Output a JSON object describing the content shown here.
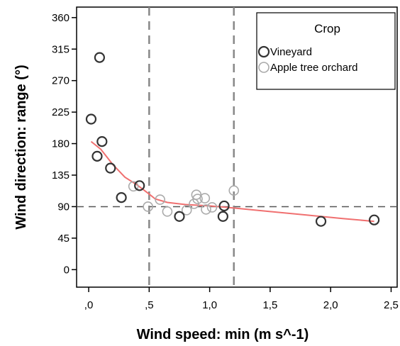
{
  "chart_data": {
    "type": "scatter",
    "xlabel": "Wind speed: min (m s^-1)",
    "ylabel": "Wind direction: range (°)",
    "xlim": [
      -0.1,
      2.55
    ],
    "ylim": [
      -25,
      375
    ],
    "x_ticks": [
      0,
      0.5,
      1.0,
      1.5,
      2.0,
      2.5
    ],
    "x_tick_labels": [
      ",0",
      ",5",
      "1,0",
      "1,5",
      "2,0",
      "2,5"
    ],
    "y_ticks": [
      0,
      45,
      90,
      135,
      180,
      225,
      270,
      315,
      360
    ],
    "y_tick_labels": [
      "0",
      "45",
      "90",
      "135",
      "180",
      "225",
      "270",
      "315",
      "360"
    ],
    "grid": false,
    "legend": {
      "title": "Crop",
      "placement": "top-right"
    },
    "series": [
      {
        "name": "Vineyard",
        "color": "#333333",
        "points": [
          {
            "x": 0.02,
            "y": 215
          },
          {
            "x": 0.07,
            "y": 162
          },
          {
            "x": 0.09,
            "y": 303
          },
          {
            "x": 0.11,
            "y": 183
          },
          {
            "x": 0.18,
            "y": 145
          },
          {
            "x": 0.27,
            "y": 103
          },
          {
            "x": 0.42,
            "y": 120
          },
          {
            "x": 0.75,
            "y": 76
          },
          {
            "x": 1.11,
            "y": 76
          },
          {
            "x": 1.12,
            "y": 91
          },
          {
            "x": 1.92,
            "y": 69
          },
          {
            "x": 2.36,
            "y": 71
          }
        ]
      },
      {
        "name": "Apple tree orchard",
        "color": "#aaaaaa",
        "points": [
          {
            "x": 0.37,
            "y": 119
          },
          {
            "x": 0.49,
            "y": 90
          },
          {
            "x": 0.59,
            "y": 100
          },
          {
            "x": 0.65,
            "y": 83
          },
          {
            "x": 0.81,
            "y": 85
          },
          {
            "x": 0.87,
            "y": 94
          },
          {
            "x": 0.89,
            "y": 107
          },
          {
            "x": 0.9,
            "y": 101
          },
          {
            "x": 0.96,
            "y": 102
          },
          {
            "x": 0.97,
            "y": 86
          },
          {
            "x": 1.02,
            "y": 89
          },
          {
            "x": 1.2,
            "y": 113
          }
        ]
      }
    ],
    "fit_line": {
      "color": "#f07070",
      "points": [
        {
          "x": 0.02,
          "y": 183
        },
        {
          "x": 0.1,
          "y": 172
        },
        {
          "x": 0.2,
          "y": 150
        },
        {
          "x": 0.3,
          "y": 132
        },
        {
          "x": 0.4,
          "y": 121
        },
        {
          "x": 0.5,
          "y": 108
        },
        {
          "x": 0.55,
          "y": 101
        },
        {
          "x": 0.65,
          "y": 96
        },
        {
          "x": 0.8,
          "y": 93
        },
        {
          "x": 1.0,
          "y": 91
        },
        {
          "x": 1.2,
          "y": 88
        },
        {
          "x": 1.5,
          "y": 83
        },
        {
          "x": 1.8,
          "y": 78
        },
        {
          "x": 2.1,
          "y": 73
        },
        {
          "x": 2.36,
          "y": 69
        }
      ]
    },
    "reference_lines": {
      "horizontal": [
        90
      ],
      "vertical": [
        0.5,
        1.2
      ],
      "color": "#555555"
    }
  }
}
